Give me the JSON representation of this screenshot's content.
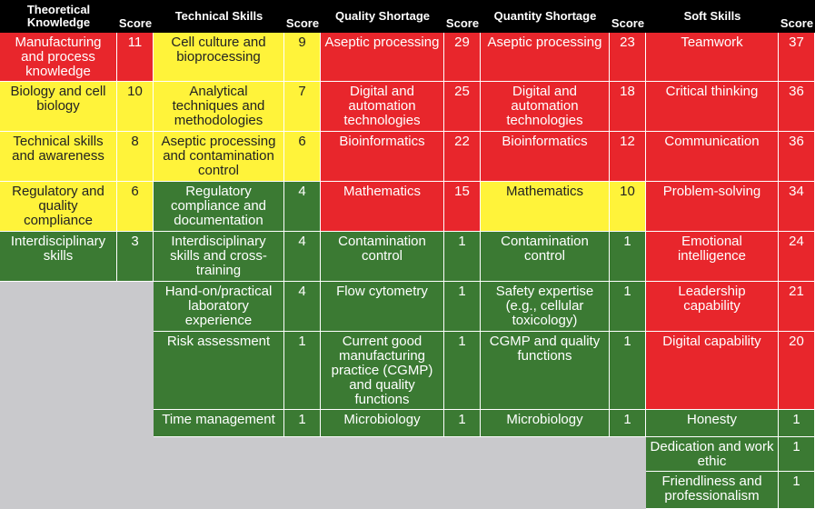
{
  "colors": {
    "red": "#e8262c",
    "yellow": "#fff33a",
    "green": "#3b7a33",
    "header": "#000000",
    "empty": "#c9c9cc"
  },
  "headers": [
    "Theoretical Knowledge",
    "Score",
    "Technical Skills",
    "Score",
    "Quality Shortage",
    "Score",
    "Quantity Shortage",
    "Score",
    "Soft Skills",
    "Score"
  ],
  "columns": [
    {
      "title": "Theoretical Knowledge",
      "items": [
        {
          "label": "Manufacturing and process knowledge",
          "score": "11",
          "color": "red"
        },
        {
          "label": "Biology and cell biology",
          "score": "10",
          "color": "yellow"
        },
        {
          "label": "Technical skills and awareness",
          "score": "8",
          "color": "yellow"
        },
        {
          "label": "Regulatory and quality compliance",
          "score": "6",
          "color": "yellow"
        },
        {
          "label": "Interdisciplinary skills",
          "score": "3",
          "color": "green"
        }
      ]
    },
    {
      "title": "Technical Skills",
      "items": [
        {
          "label": "Cell culture and bioprocessing",
          "score": "9",
          "color": "yellow"
        },
        {
          "label": "Analytical techniques and methodologies",
          "score": "7",
          "color": "yellow"
        },
        {
          "label": "Aseptic processing and contamination control",
          "score": "6",
          "color": "yellow"
        },
        {
          "label": "Regulatory compliance and documentation",
          "score": "4",
          "color": "green"
        },
        {
          "label": "Interdisciplinary skills and cross-training",
          "score": "4",
          "color": "green"
        },
        {
          "label": "Hand-on/practical laboratory experience",
          "score": "4",
          "color": "green"
        },
        {
          "label": "Risk assessment",
          "score": "1",
          "color": "green"
        },
        {
          "label": "Time management",
          "score": "1",
          "color": "green"
        }
      ]
    },
    {
      "title": "Quality Shortage",
      "items": [
        {
          "label": "Aseptic processing",
          "score": "29",
          "color": "red"
        },
        {
          "label": "Digital and automation technologies",
          "score": "25",
          "color": "red"
        },
        {
          "label": "Bioinformatics",
          "score": "22",
          "color": "red"
        },
        {
          "label": "Mathematics",
          "score": "15",
          "color": "red"
        },
        {
          "label": "Contamination control",
          "score": "1",
          "color": "green"
        },
        {
          "label": "Flow cytometry",
          "score": "1",
          "color": "green"
        },
        {
          "label": "Current good manufacturing practice (CGMP) and quality functions",
          "score": "1",
          "color": "green"
        },
        {
          "label": "Microbiology",
          "score": "1",
          "color": "green"
        }
      ]
    },
    {
      "title": "Quantity Shortage",
      "items": [
        {
          "label": "Aseptic processing",
          "score": "23",
          "color": "red"
        },
        {
          "label": "Digital and automation technologies",
          "score": "18",
          "color": "red"
        },
        {
          "label": "Bioinformatics",
          "score": "12",
          "color": "red"
        },
        {
          "label": "Mathematics",
          "score": "10",
          "color": "yellow"
        },
        {
          "label": "Contamination control",
          "score": "1",
          "color": "green"
        },
        {
          "label": "Safety expertise (e.g., cellular toxicology)",
          "score": "1",
          "color": "green"
        },
        {
          "label": "CGMP and quality functions",
          "score": "1",
          "color": "green"
        },
        {
          "label": "Microbiology",
          "score": "1",
          "color": "green"
        }
      ]
    },
    {
      "title": "Soft Skills",
      "items": [
        {
          "label": "Teamwork",
          "score": "37",
          "color": "red"
        },
        {
          "label": "Critical thinking",
          "score": "36",
          "color": "red"
        },
        {
          "label": "Communication",
          "score": "36",
          "color": "red"
        },
        {
          "label": "Problem-solving",
          "score": "34",
          "color": "red"
        },
        {
          "label": "Emotional intelligence",
          "score": "24",
          "color": "red"
        },
        {
          "label": "Leadership capability",
          "score": "21",
          "color": "red"
        },
        {
          "label": "Digital capability",
          "score": "20",
          "color": "red"
        },
        {
          "label": "Honesty",
          "score": "1",
          "color": "green"
        },
        {
          "label": "Dedication and work ethic",
          "score": "1",
          "color": "green"
        },
        {
          "label": "Friendliness and professionalism",
          "score": "1",
          "color": "green"
        }
      ]
    }
  ]
}
